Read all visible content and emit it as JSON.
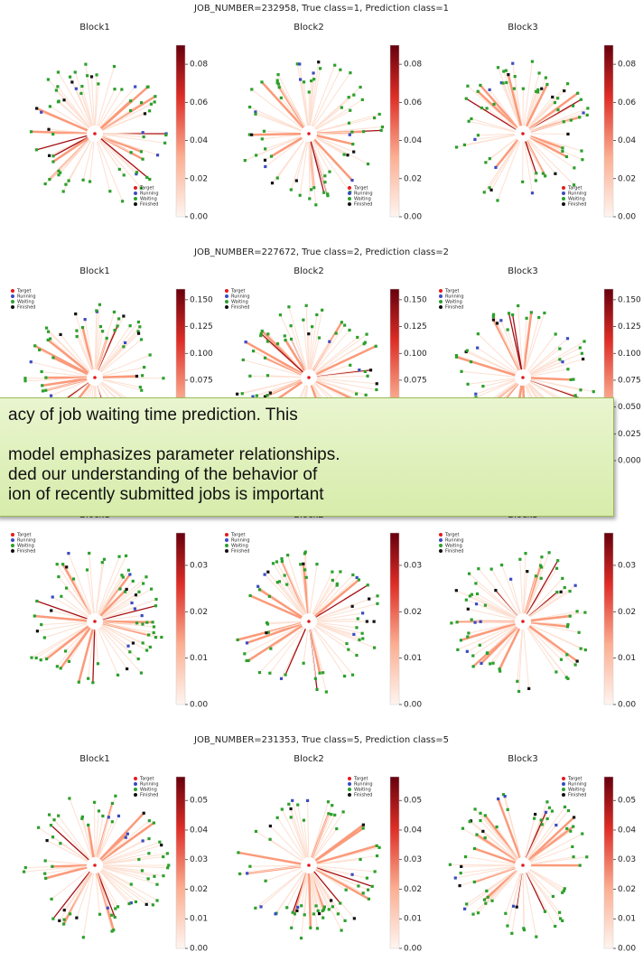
{
  "rows": [
    {
      "title": "JOB_NUMBER=232958, True class=1, Prediction class=1",
      "blocks": [
        "Block1",
        "Block2",
        "Block3"
      ],
      "legend_corner": "lower right",
      "colorbar_lim": [
        0,
        0.09
      ],
      "colorbar_ticks": [
        {
          "value": 0,
          "label": "0.00"
        },
        {
          "value": 0.02,
          "label": "0.02"
        },
        {
          "value": 0.04,
          "label": "0.04"
        },
        {
          "value": 0.06,
          "label": "0.06"
        },
        {
          "value": 0.08,
          "label": "0.08"
        }
      ]
    },
    {
      "title": "JOB_NUMBER=227672, True class=2, Prediction class=2",
      "blocks": [
        "Block1",
        "Block2",
        "Block3"
      ],
      "legend_corner": "upper left",
      "colorbar_lim": [
        0,
        0.16
      ],
      "colorbar_ticks": [
        {
          "value": 0,
          "label": "0.000"
        },
        {
          "value": 0.025,
          "label": "0.025"
        },
        {
          "value": 0.05,
          "label": "0.050"
        },
        {
          "value": 0.075,
          "label": "0.075"
        },
        {
          "value": 0.1,
          "label": "0.100"
        },
        {
          "value": 0.125,
          "label": "0.125"
        },
        {
          "value": 0.15,
          "label": "0.150"
        }
      ]
    },
    {
      "blocks": [
        "Block1",
        "Block2",
        "Block3"
      ],
      "legend_corner": "upper left",
      "colorbar_lim": [
        0,
        0.037
      ],
      "colorbar_ticks": [
        {
          "value": 0,
          "label": "0.00"
        },
        {
          "value": 0.01,
          "label": "0.01"
        },
        {
          "value": 0.02,
          "label": "0.02"
        },
        {
          "value": 0.03,
          "label": "0.03"
        }
      ]
    },
    {
      "title": "JOB_NUMBER=231353, True class=5, Prediction class=5",
      "blocks": [
        "Block1",
        "Block2",
        "Block3"
      ],
      "legend_corner": "upper right",
      "colorbar_lim": [
        0,
        0.058
      ],
      "colorbar_ticks": [
        {
          "value": 0,
          "label": "0.00"
        },
        {
          "value": 0.01,
          "label": "0.01"
        },
        {
          "value": 0.02,
          "label": "0.02"
        },
        {
          "value": 0.03,
          "label": "0.03"
        },
        {
          "value": 0.04,
          "label": "0.04"
        },
        {
          "value": 0.05,
          "label": "0.05"
        }
      ]
    }
  ],
  "legend": [
    "Target",
    "Running",
    "Waiting",
    "Finished"
  ],
  "overlay": {
    "lines": [
      "acy of job waiting time prediction. This",
      "",
      "model emphasizes parameter relationships.",
      "ded our understanding of the behavior of",
      "ion of recently submitted jobs is important",
      ""
    ]
  }
}
